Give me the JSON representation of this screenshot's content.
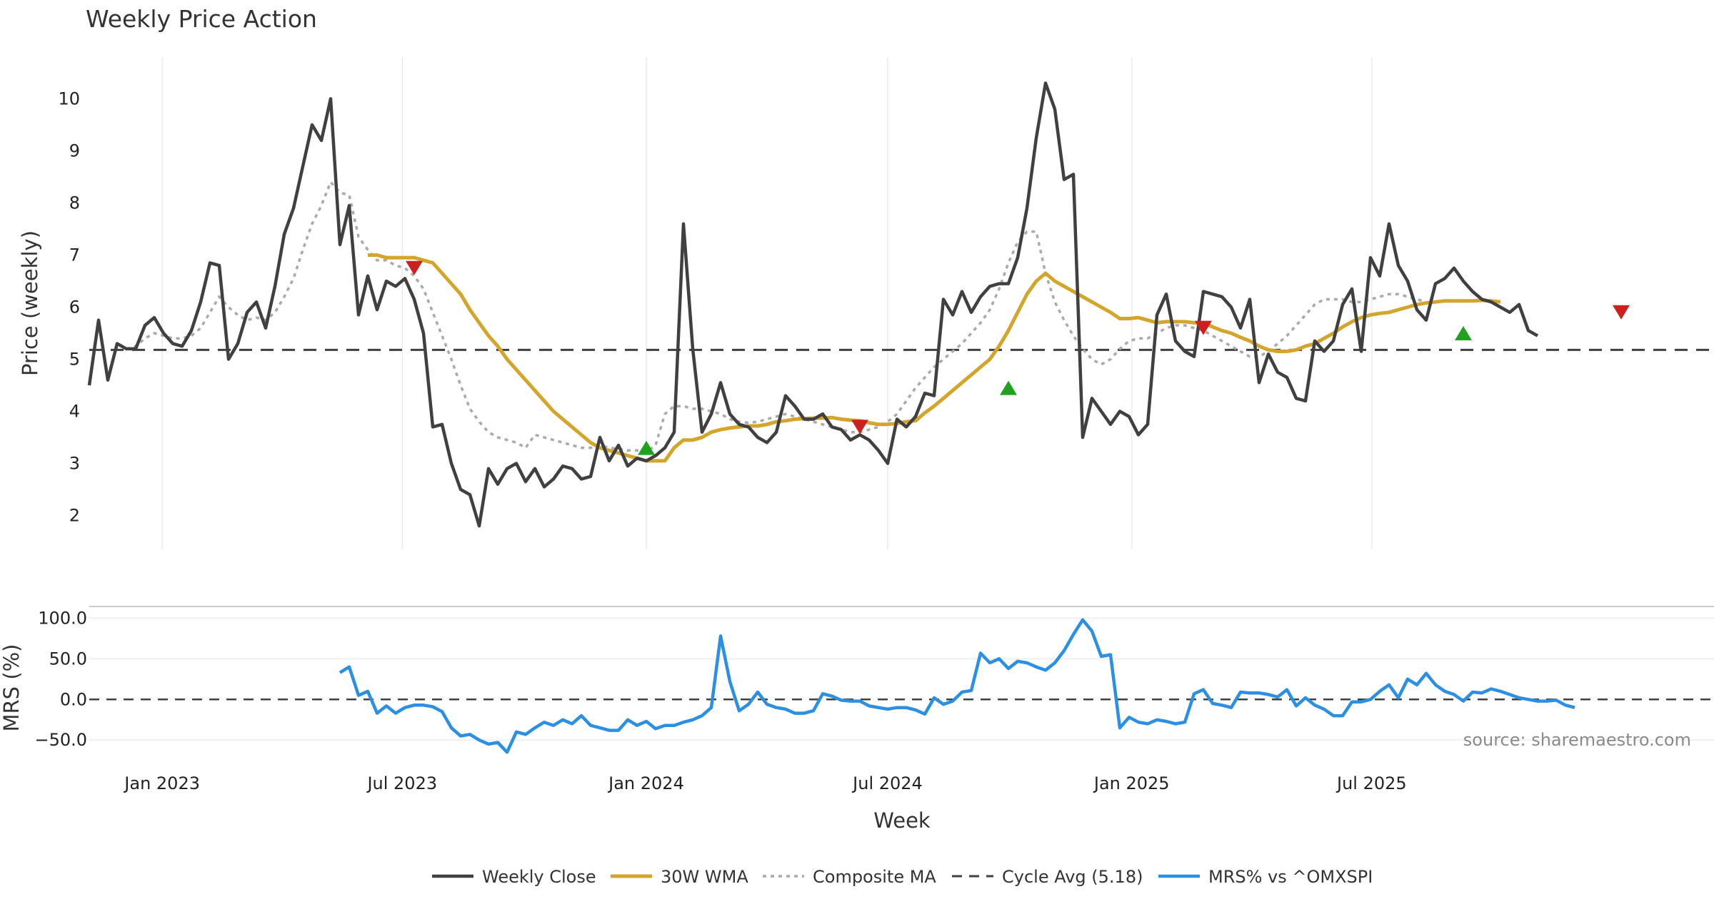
{
  "chart_data": {
    "type": "line",
    "title": "Weekly Price Action",
    "xlabel": "Week",
    "x_start": "2022-11-07",
    "x_ticks": [
      "Jan 2023",
      "Jul 2023",
      "Jan 2024",
      "Jul 2024",
      "Jan 2025",
      "Jul 2025"
    ],
    "x_tick_dates": [
      "2023-01-01",
      "2023-07-01",
      "2024-01-01",
      "2024-07-01",
      "2025-01-01",
      "2025-07-01"
    ],
    "price_panel": {
      "ylabel": "Price (weekly)",
      "ylim": [
        1.35,
        10.8
      ],
      "yticks": [
        "2",
        "3",
        "4",
        "5",
        "6",
        "7",
        "8",
        "9",
        "10"
      ],
      "ytick_values": [
        2,
        3,
        4,
        5,
        6,
        7,
        8,
        9,
        10
      ],
      "grid": "vertical"
    },
    "mrs_panel": {
      "ylabel": "MRS (%)",
      "ylim": [
        -70,
        110
      ],
      "yticks": [
        "100.0",
        "50.0",
        "0.0",
        "−50.0"
      ],
      "ytick_values": [
        100,
        50,
        0,
        -50
      ],
      "zero_line": 0
    },
    "series": [
      {
        "name": "Weekly Close",
        "color": "#404040",
        "style": "solid",
        "values": [
          4.5,
          5.75,
          4.6,
          5.3,
          5.2,
          5.2,
          5.65,
          5.8,
          5.5,
          5.3,
          5.25,
          5.55,
          6.1,
          6.85,
          6.8,
          5.0,
          5.3,
          5.9,
          6.1,
          5.6,
          6.4,
          7.4,
          7.9,
          8.7,
          9.5,
          9.2,
          10.0,
          7.2,
          7.95,
          5.85,
          6.6,
          5.95,
          6.5,
          6.4,
          6.55,
          6.15,
          5.5,
          3.7,
          3.75,
          3.0,
          2.5,
          2.4,
          1.8,
          2.9,
          2.6,
          2.9,
          3.0,
          2.65,
          2.9,
          2.55,
          2.7,
          2.95,
          2.9,
          2.7,
          2.75,
          3.5,
          3.05,
          3.35,
          2.95,
          3.1,
          3.05,
          3.15,
          3.3,
          3.6,
          7.6,
          5.2,
          3.6,
          3.95,
          4.55,
          3.95,
          3.75,
          3.7,
          3.5,
          3.4,
          3.6,
          4.3,
          4.1,
          3.85,
          3.85,
          3.95,
          3.7,
          3.65,
          3.45,
          3.55,
          3.45,
          3.25,
          3.0,
          3.85,
          3.7,
          3.9,
          4.35,
          4.3,
          6.15,
          5.85,
          6.3,
          5.9,
          6.2,
          6.4,
          6.45,
          6.45,
          6.95,
          7.9,
          9.25,
          10.3,
          9.8,
          8.45,
          8.55,
          3.5,
          4.25,
          4.0,
          3.75,
          4.0,
          3.9,
          3.55,
          3.75,
          5.85,
          6.25,
          5.35,
          5.15,
          5.05,
          6.3,
          6.25,
          6.2,
          6.0,
          5.6,
          6.15,
          4.55,
          5.1,
          4.75,
          4.65,
          4.25,
          4.2,
          5.35,
          5.15,
          5.35,
          6.05,
          6.35,
          5.15,
          6.95,
          6.6,
          7.6,
          6.8,
          6.5,
          5.95,
          5.75,
          6.45,
          6.55,
          6.75,
          6.5,
          6.3,
          6.15,
          6.1,
          6.0,
          5.9,
          6.05,
          5.55,
          5.45
        ]
      },
      {
        "name": "30W WMA",
        "color": "#d4a52b",
        "style": "solid",
        "start_index": 30,
        "values": [
          7.0,
          7.0,
          6.95,
          6.95,
          6.95,
          6.95,
          6.9,
          6.85,
          6.65,
          6.45,
          6.25,
          5.95,
          5.7,
          5.45,
          5.25,
          5.0,
          4.8,
          4.6,
          4.4,
          4.2,
          4.0,
          3.85,
          3.7,
          3.55,
          3.4,
          3.3,
          3.25,
          3.2,
          3.15,
          3.1,
          3.05,
          3.05,
          3.05,
          3.3,
          3.45,
          3.45,
          3.5,
          3.6,
          3.65,
          3.68,
          3.7,
          3.72,
          3.72,
          3.75,
          3.8,
          3.82,
          3.85,
          3.86,
          3.87,
          3.87,
          3.88,
          3.85,
          3.83,
          3.82,
          3.78,
          3.75,
          3.75,
          3.77,
          3.8,
          3.82,
          3.97,
          4.1,
          4.25,
          4.4,
          4.55,
          4.7,
          4.85,
          5.0,
          5.25,
          5.55,
          5.9,
          6.25,
          6.5,
          6.65,
          6.5,
          6.4,
          6.3,
          6.2,
          6.1,
          6.0,
          5.9,
          5.78,
          5.78,
          5.8,
          5.75,
          5.7,
          5.72,
          5.72,
          5.72,
          5.7,
          5.7,
          5.62,
          5.55,
          5.5,
          5.42,
          5.35,
          5.25,
          5.18,
          5.15,
          5.15,
          5.18,
          5.25,
          5.3,
          5.4,
          5.5,
          5.62,
          5.72,
          5.8,
          5.85,
          5.88,
          5.9,
          5.95,
          6.0,
          6.05,
          6.08,
          6.1,
          6.12,
          6.12,
          6.12,
          6.12,
          6.13,
          6.12,
          6.1
        ]
      },
      {
        "name": "Composite MA",
        "color": "#aaaaaa",
        "style": "dotted",
        "start_index": 4,
        "values": [
          5.2,
          5.25,
          5.4,
          5.5,
          5.45,
          5.4,
          5.4,
          5.45,
          5.6,
          5.9,
          6.2,
          6.0,
          5.85,
          5.75,
          5.8,
          5.75,
          5.9,
          6.2,
          6.55,
          7.1,
          7.6,
          7.95,
          8.4,
          8.2,
          8.15,
          7.35,
          7.1,
          6.9,
          6.9,
          6.8,
          6.75,
          6.6,
          6.35,
          5.9,
          5.45,
          5.0,
          4.5,
          4.05,
          3.8,
          3.6,
          3.5,
          3.45,
          3.4,
          3.3,
          3.55,
          3.5,
          3.45,
          3.4,
          3.35,
          3.3,
          3.3,
          3.35,
          3.3,
          3.28,
          3.25,
          3.25,
          3.22,
          3.35,
          3.95,
          4.1,
          4.1,
          4.05,
          4.05,
          4.0,
          3.95,
          3.85,
          3.8,
          3.78,
          3.8,
          3.85,
          3.9,
          3.95,
          3.9,
          3.85,
          3.8,
          3.75,
          3.7,
          3.65,
          3.6,
          3.6,
          3.65,
          3.7,
          3.8,
          3.95,
          4.2,
          4.45,
          4.65,
          4.85,
          5.0,
          5.15,
          5.3,
          5.5,
          5.7,
          5.95,
          6.35,
          6.85,
          7.25,
          7.45,
          7.45,
          6.65,
          6.1,
          5.75,
          5.45,
          5.2,
          5.0,
          4.9,
          5.0,
          5.2,
          5.35,
          5.4,
          5.4,
          5.5,
          5.6,
          5.65,
          5.65,
          5.6,
          5.55,
          5.45,
          5.35,
          5.25,
          5.15,
          5.05,
          5.05,
          5.15,
          5.3,
          5.45,
          5.65,
          5.85,
          6.05,
          6.15,
          6.15,
          6.15,
          6.1,
          6.1,
          6.15,
          6.2,
          6.25,
          6.25,
          6.2,
          6.15,
          6.1
        ]
      },
      {
        "name": "Cycle Avg (5.18)",
        "color": "#404040",
        "style": "dashed",
        "value": 5.18
      },
      {
        "name": "MRS% vs ^OMXSPI",
        "color": "#2b8fe3",
        "style": "solid",
        "panel": "mrs",
        "start_index": 27,
        "values": [
          33,
          40,
          5,
          10,
          -17,
          -8,
          -17,
          -10,
          -7,
          -7,
          -9,
          -15,
          -35,
          -45,
          -43,
          -50,
          -55,
          -53,
          -65,
          -40,
          -43,
          -35,
          -28,
          -32,
          -25,
          -30,
          -20,
          -32,
          -35,
          -38,
          -38,
          -25,
          -32,
          -27,
          -36,
          -32,
          -32,
          -28,
          -25,
          -20,
          -10,
          78,
          22,
          -14,
          -6,
          9,
          -6,
          -10,
          -12,
          -17,
          -17,
          -14,
          7,
          4,
          -1,
          -2,
          -2,
          -8,
          -10,
          -12,
          -10,
          -10,
          -13,
          -18,
          2,
          -6,
          -2,
          9,
          11,
          57,
          45,
          50,
          38,
          47,
          45,
          40,
          36,
          45,
          60,
          80,
          98,
          84,
          53,
          55,
          -35,
          -22,
          -28,
          -30,
          -25,
          -27,
          -30,
          -28,
          7,
          12,
          -5,
          -7,
          -10,
          9,
          8,
          8,
          6,
          3,
          12,
          -8,
          2,
          -7,
          -12,
          -20,
          -20,
          -3,
          -3,
          0,
          10,
          18,
          2,
          25,
          18,
          32,
          18,
          10,
          6,
          -2,
          9,
          8,
          13,
          10,
          6,
          2,
          0,
          -2,
          -2,
          -1,
          -7,
          -10
        ]
      }
    ],
    "signals": {
      "buy": [
        {
          "index": 60,
          "y": 3.3
        },
        {
          "index": 99,
          "y": 4.45
        },
        {
          "index": 148,
          "y": 5.5
        }
      ],
      "sell": [
        {
          "index": 35,
          "y": 6.75
        },
        {
          "index": 83,
          "y": 3.7
        },
        {
          "index": 120,
          "y": 5.6
        },
        {
          "index": 165,
          "y": 5.9
        }
      ]
    },
    "legend_position": "bottom-center",
    "source_label": "source: sharemaestro.com"
  }
}
